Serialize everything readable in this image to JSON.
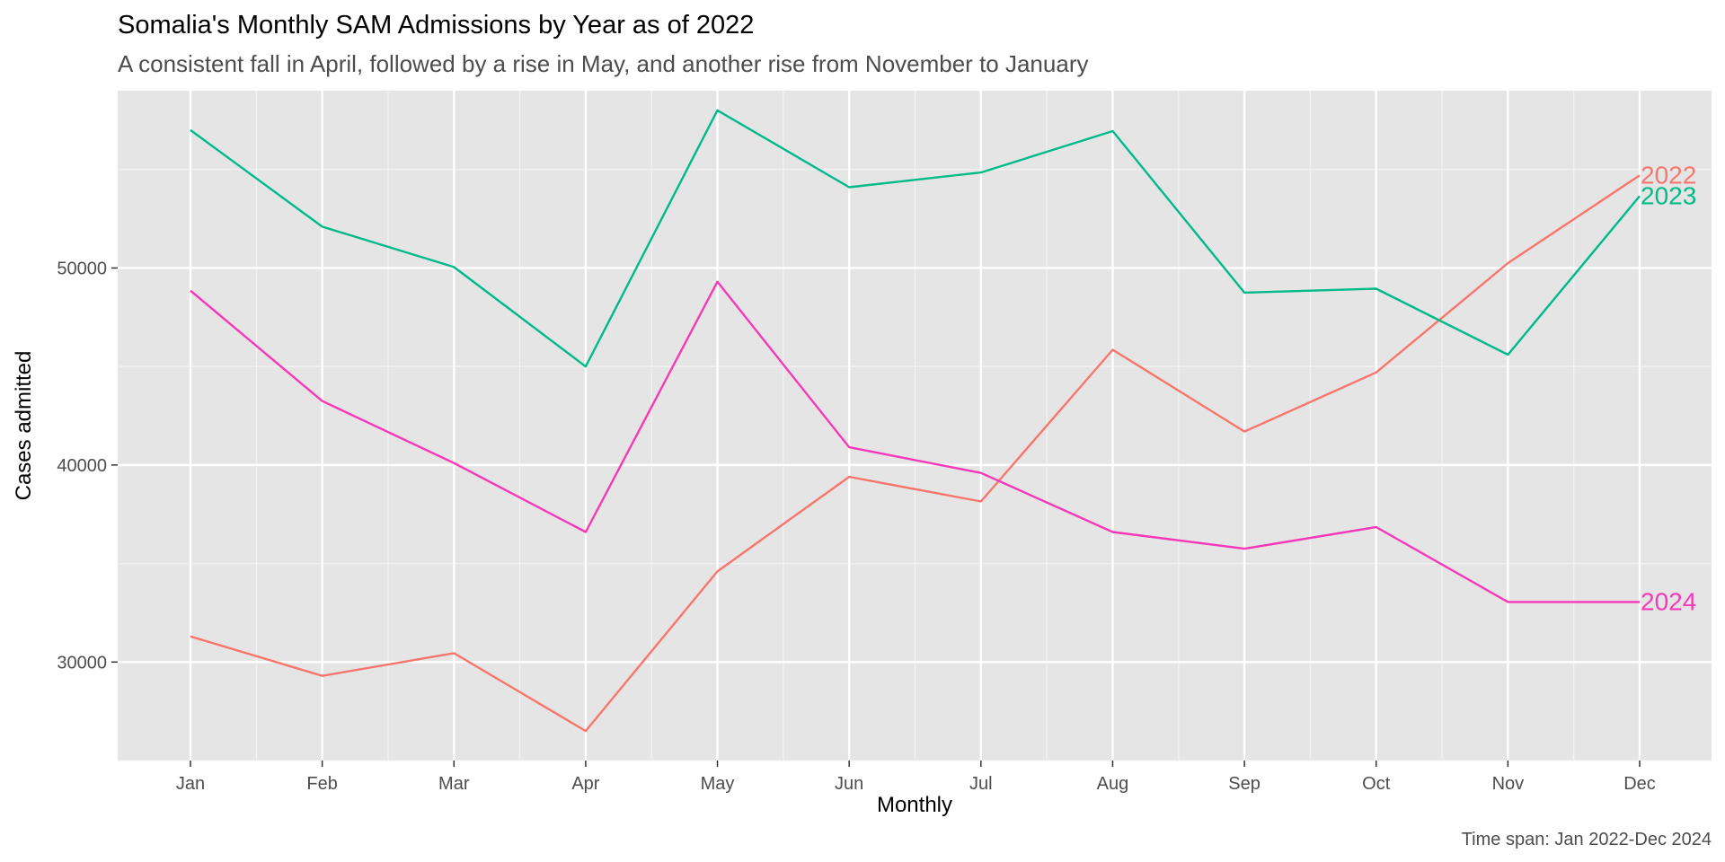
{
  "chart_data": {
    "type": "line",
    "title": "Somalia's Monthly SAM Admissions by Year as of 2022",
    "subtitle": "A consistent fall in April, followed by a rise in May, and another rise from November to January",
    "xlabel": "Monthly",
    "ylabel": "Cases admitted",
    "caption": "Time span: Jan 2022-Dec 2024",
    "x": [
      "Jan",
      "Feb",
      "Mar",
      "Apr",
      "May",
      "Jun",
      "Jul",
      "Aug",
      "Sep",
      "Oct",
      "Nov",
      "Dec"
    ],
    "ylim": [
      25000,
      59000
    ],
    "yticks": [
      30000,
      40000,
      50000
    ],
    "ytick_labels": [
      "30000",
      "40000",
      "50000"
    ],
    "grid": true,
    "legend": "direct labels at line ends",
    "series": [
      {
        "name": "2022",
        "color": "#F8766D",
        "values": [
          31300,
          29300,
          30450,
          26500,
          34600,
          39400,
          38150,
          45850,
          41700,
          44700,
          50250,
          54700
        ]
      },
      {
        "name": "2023",
        "color": "#00BA88",
        "values": [
          57000,
          52100,
          50050,
          45000,
          58000,
          54100,
          54850,
          56950,
          48750,
          48950,
          45600,
          53650
        ]
      },
      {
        "name": "2024",
        "color": "#F738B8",
        "values": [
          48850,
          43250,
          40100,
          36600,
          49300,
          40900,
          39600,
          36600,
          35750,
          36850,
          33050,
          33050
        ]
      }
    ]
  }
}
